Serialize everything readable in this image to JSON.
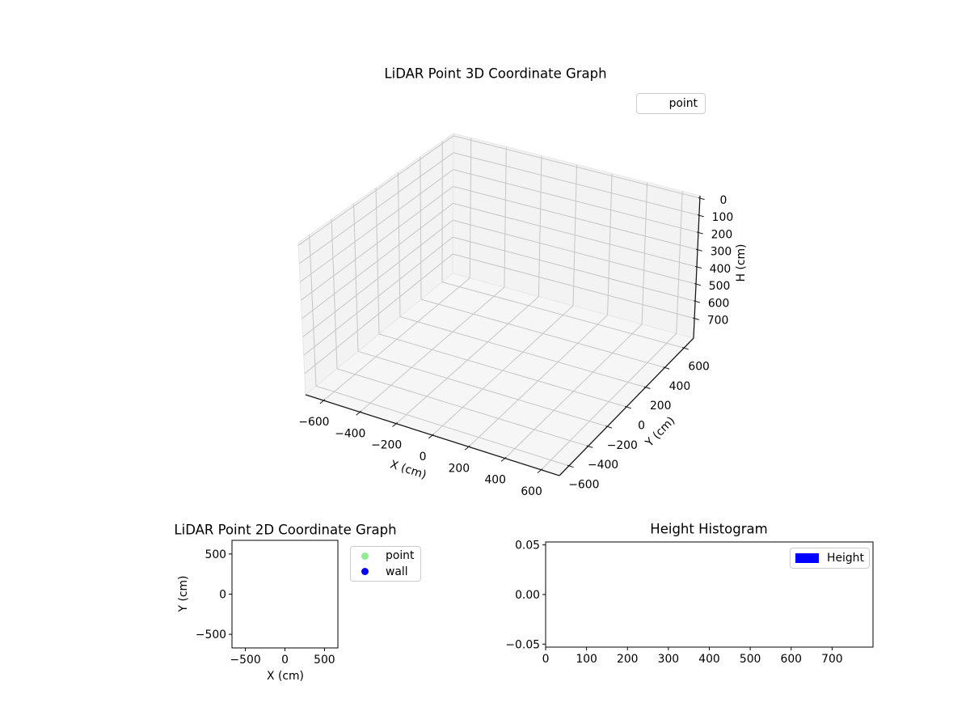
{
  "figure": {
    "background": "#ffffff"
  },
  "plot3d": {
    "title": "LiDAR Point 3D Coordinate Graph",
    "xlabel": "X (cm)",
    "ylabel": "Y (cm)",
    "zlabel": "H (cm)",
    "x_tick_labels": [
      "−600",
      "−400",
      "−200",
      "0",
      "200",
      "400",
      "600"
    ],
    "y_tick_labels": [
      "−600",
      "−400",
      "−200",
      "0",
      "200",
      "400",
      "600"
    ],
    "z_tick_labels": [
      "0",
      "100",
      "200",
      "300",
      "400",
      "500",
      "600",
      "700"
    ],
    "legend": {
      "items": [
        {
          "label": "point",
          "marker": "none"
        }
      ]
    }
  },
  "plot2d": {
    "title": "LiDAR Point 2D Coordinate Graph",
    "xlabel": "X (cm)",
    "ylabel": "Y (cm)",
    "x_tick_labels": [
      "−500",
      "0",
      "500"
    ],
    "y_tick_labels": [
      "500",
      "0",
      "−500"
    ],
    "legend": {
      "items": [
        {
          "label": "point",
          "color": "#90EE90"
        },
        {
          "label": "wall",
          "color": "#0000FF"
        }
      ]
    }
  },
  "hist": {
    "title": "Height Histogram",
    "x_tick_labels": [
      "0",
      "100",
      "200",
      "300",
      "400",
      "500",
      "600",
      "700"
    ],
    "y_tick_labels": [
      "0.05",
      "0.00",
      "−0.05"
    ],
    "legend": {
      "items": [
        {
          "label": "Height",
          "color": "#0000FF"
        }
      ]
    }
  },
  "chart_data": [
    {
      "type": "scatter",
      "projection": "3d",
      "title": "LiDAR Point 3D Coordinate Graph",
      "xlabel": "X (cm)",
      "ylabel": "Y (cm)",
      "zlabel": "H (cm)",
      "xlim": [
        -700,
        700
      ],
      "ylim": [
        -700,
        700
      ],
      "zlim": [
        -14,
        815
      ],
      "z_axis_inverted": true,
      "x_ticks": [
        -600,
        -400,
        -200,
        0,
        200,
        400,
        600
      ],
      "y_ticks": [
        -600,
        -400,
        -200,
        0,
        200,
        400,
        600
      ],
      "z_ticks": [
        0,
        100,
        200,
        300,
        400,
        500,
        600,
        700
      ],
      "grid": true,
      "legend_position": "upper right",
      "series": [
        {
          "name": "point",
          "points": []
        }
      ]
    },
    {
      "type": "scatter",
      "title": "LiDAR Point 2D Coordinate Graph",
      "xlabel": "X (cm)",
      "ylabel": "Y (cm)",
      "xlim": [
        -670,
        670
      ],
      "ylim": [
        -670,
        670
      ],
      "x_ticks": [
        -500,
        0,
        500
      ],
      "y_ticks": [
        500,
        0,
        -500
      ],
      "grid": false,
      "legend_position": "outside right",
      "series": [
        {
          "name": "point",
          "color": "#90EE90",
          "points": []
        },
        {
          "name": "wall",
          "color": "#0000FF",
          "points": []
        }
      ]
    },
    {
      "type": "bar",
      "title": "Height Histogram",
      "xlabel": "",
      "ylabel": "",
      "xlim": [
        0,
        800
      ],
      "ylim": [
        -0.053,
        0.053
      ],
      "x_ticks": [
        0,
        100,
        200,
        300,
        400,
        500,
        600,
        700
      ],
      "y_ticks": [
        0.05,
        0.0,
        -0.05
      ],
      "grid": false,
      "legend_position": "upper right",
      "series": [
        {
          "name": "Height",
          "color": "#0000FF",
          "values": []
        }
      ]
    }
  ],
  "colors": {
    "pane_wall": "#f3f3f3",
    "pane_floor": "#f6f6f6",
    "pane_edge": "#e7e7e7",
    "grid3d": "#c6c6c6",
    "axis_line": "#1a1a1a",
    "frame": "#000000",
    "text": "#000000",
    "legend_border": "#cccccc"
  }
}
